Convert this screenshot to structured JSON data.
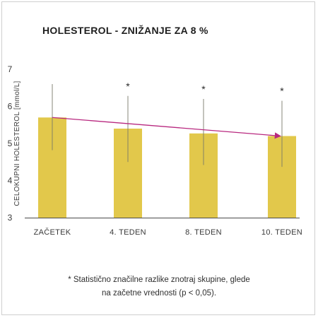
{
  "chart_data": {
    "type": "bar",
    "title": "HOLESTEROL - ZNIŽANJE ZA 8 %",
    "ylabel": "CELOKUPNI HOLESTEROL [mmol/L]",
    "xlabel": "",
    "categories": [
      "ZAČETEK",
      "4. TEDEN",
      "8. TEDEN",
      "10. TEDEN"
    ],
    "values": [
      5.7,
      5.4,
      5.27,
      5.2
    ],
    "error_low": [
      4.82,
      4.5,
      4.42,
      4.37
    ],
    "error_high": [
      6.6,
      6.28,
      6.2,
      6.15
    ],
    "significance": [
      "",
      "*",
      "*",
      "*"
    ],
    "yticks": [
      "3",
      "4",
      "5",
      "6",
      "7"
    ],
    "ylim": [
      3,
      7
    ],
    "trend_line": {
      "from_value": 5.7,
      "to_value": 5.2
    },
    "bar_color": "#e2c84b",
    "trend_color": "#b8287f",
    "grid": false
  },
  "footnote": {
    "line1": "* Statistično značilne razlike znotraj skupine, glede",
    "line2": "na začetne vrednosti (p < 0,05)."
  }
}
